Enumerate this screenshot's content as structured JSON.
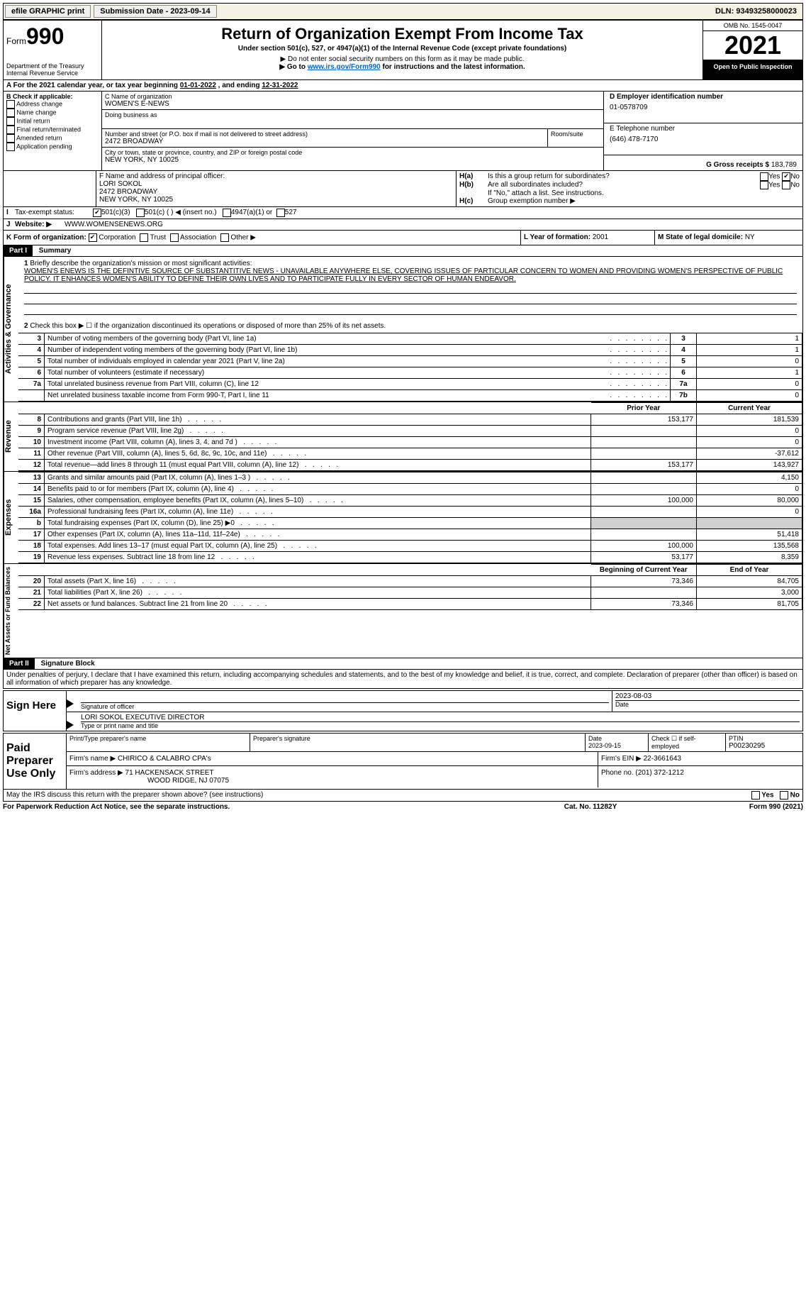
{
  "topbar": {
    "efile_label": "efile GRAPHIC print",
    "submission_label": "Submission Date - 2023-09-14",
    "dln_label": "DLN: 93493258000023"
  },
  "header": {
    "form_label": "Form",
    "form_number": "990",
    "dept": "Department of the Treasury\nInternal Revenue Service",
    "title": "Return of Organization Exempt From Income Tax",
    "subtitle": "Under section 501(c), 527, or 4947(a)(1) of the Internal Revenue Code (except private foundations)",
    "ssn_note": "▶ Do not enter social security numbers on this form as it may be made public.",
    "goto_prefix": "▶ Go to ",
    "goto_link": "www.irs.gov/Form990",
    "goto_suffix": " for instructions and the latest information.",
    "omb": "OMB No. 1545-0047",
    "year": "2021",
    "open_label": "Open to Public Inspection"
  },
  "line_a": {
    "text_prefix": "A For the 2021 calendar year, or tax year beginning ",
    "begin_date": "01-01-2022",
    "mid": " , and ending ",
    "end_date": "12-31-2022"
  },
  "box_b": {
    "label": "B Check if applicable:",
    "items": [
      "Address change",
      "Name change",
      "Initial return",
      "Final return/terminated",
      "Amended return",
      "Application pending"
    ]
  },
  "box_c": {
    "name_label": "C Name of organization",
    "name": "WOMEN'S E-NEWS",
    "dba_label": "Doing business as",
    "dba": "",
    "street_label": "Number and street (or P.O. box if mail is not delivered to street address)",
    "room_label": "Room/suite",
    "street": "2472 BROADWAY",
    "city_label": "City or town, state or province, country, and ZIP or foreign postal code",
    "city": "NEW YORK, NY  10025"
  },
  "box_d": {
    "label": "D Employer identification number",
    "value": "01-0578709"
  },
  "box_e": {
    "label": "E Telephone number",
    "value": "(646) 478-7170"
  },
  "box_g": {
    "label": "G Gross receipts $ ",
    "value": "183,789"
  },
  "box_f": {
    "label": "F Name and address of principal officer:",
    "name": "LORI SOKOL",
    "street": "2472 BROADWAY",
    "city": "NEW YORK, NY  10025"
  },
  "box_h": {
    "a_label": "H(a)",
    "a_text": "Is this a group return for subordinates?",
    "b_label": "H(b)",
    "b_text": "Are all subordinates included?",
    "b_note": "If \"No,\" attach a list. See instructions.",
    "c_label": "H(c)",
    "c_text": "Group exemption number ▶",
    "yes": "Yes",
    "no": "No"
  },
  "box_i": {
    "label": "I",
    "text": "Tax-exempt status:",
    "opt1": "501(c)(3)",
    "opt2": "501(c) (   ) ◀ (insert no.)",
    "opt3": "4947(a)(1) or",
    "opt4": "527"
  },
  "box_j": {
    "label": "J",
    "text": "Website: ▶",
    "value": "WWW.WOMENSENEWS.ORG"
  },
  "box_k": {
    "label": "K Form of organization:",
    "opts": [
      "Corporation",
      "Trust",
      "Association",
      "Other ▶"
    ]
  },
  "box_l": {
    "label": "L Year of formation: ",
    "value": "2001"
  },
  "box_m": {
    "label": "M State of legal domicile: ",
    "value": "NY"
  },
  "part1": {
    "label": "Part I",
    "title": "Summary",
    "line1_label": "1",
    "line1_text": "Briefly describe the organization's mission or most significant activities:",
    "line1_value": "WOMEN'S ENEWS IS THE DEFINTIVE SOURCE OF SUBSTANTITIVE NEWS - UNAVAILABLE ANYWHERE ELSE, COVERING ISSUES OF PARTICULAR CONCERN TO WOMEN AND PROVIDING WOMEN'S PERSPECTIVE OF PUBLIC POLICY. IT ENHANCES WOMEN'S ABILITY TO DEFINE THEIR OWN LIVES AND TO PARTICIPATE FULLY IN EVERY SECTOR OF HUMAN ENDEAVOR.",
    "governance_label": "Activities & Governance",
    "line2_text": "Check this box ▶ ☐ if the organization discontinued its operations or disposed of more than 25% of its net assets.",
    "rows_gov": [
      {
        "n": "3",
        "desc": "Number of voting members of the governing body (Part VI, line 1a)",
        "box": "3",
        "val": "1"
      },
      {
        "n": "4",
        "desc": "Number of independent voting members of the governing body (Part VI, line 1b)",
        "box": "4",
        "val": "1"
      },
      {
        "n": "5",
        "desc": "Total number of individuals employed in calendar year 2021 (Part V, line 2a)",
        "box": "5",
        "val": "0"
      },
      {
        "n": "6",
        "desc": "Total number of volunteers (estimate if necessary)",
        "box": "6",
        "val": "1"
      },
      {
        "n": "7a",
        "desc": "Total unrelated business revenue from Part VIII, column (C), line 12",
        "box": "7a",
        "val": "0"
      },
      {
        "n": "",
        "desc": "Net unrelated business taxable income from Form 990-T, Part I, line 11",
        "box": "7b",
        "val": "0"
      }
    ],
    "prior_year": "Prior Year",
    "current_year": "Current Year",
    "revenue_label": "Revenue",
    "rows_rev": [
      {
        "n": "8",
        "desc": "Contributions and grants (Part VIII, line 1h)",
        "py": "153,177",
        "cy": "181,539"
      },
      {
        "n": "9",
        "desc": "Program service revenue (Part VIII, line 2g)",
        "py": "",
        "cy": "0"
      },
      {
        "n": "10",
        "desc": "Investment income (Part VIII, column (A), lines 3, 4, and 7d )",
        "py": "",
        "cy": "0"
      },
      {
        "n": "11",
        "desc": "Other revenue (Part VIII, column (A), lines 5, 6d, 8c, 9c, 10c, and 11e)",
        "py": "",
        "cy": "-37,612"
      },
      {
        "n": "12",
        "desc": "Total revenue—add lines 8 through 11 (must equal Part VIII, column (A), line 12)",
        "py": "153,177",
        "cy": "143,927"
      }
    ],
    "expenses_label": "Expenses",
    "rows_exp": [
      {
        "n": "13",
        "desc": "Grants and similar amounts paid (Part IX, column (A), lines 1–3 )",
        "py": "",
        "cy": "4,150"
      },
      {
        "n": "14",
        "desc": "Benefits paid to or for members (Part IX, column (A), line 4)",
        "py": "",
        "cy": "0"
      },
      {
        "n": "15",
        "desc": "Salaries, other compensation, employee benefits (Part IX, column (A), lines 5–10)",
        "py": "100,000",
        "cy": "80,000"
      },
      {
        "n": "16a",
        "desc": "Professional fundraising fees (Part IX, column (A), line 11e)",
        "py": "",
        "cy": "0"
      },
      {
        "n": "b",
        "desc": "Total fundraising expenses (Part IX, column (D), line 25) ▶0",
        "py": "shaded",
        "cy": "shaded"
      },
      {
        "n": "17",
        "desc": "Other expenses (Part IX, column (A), lines 11a–11d, 11f–24e)",
        "py": "",
        "cy": "51,418"
      },
      {
        "n": "18",
        "desc": "Total expenses. Add lines 13–17 (must equal Part IX, column (A), line 25)",
        "py": "100,000",
        "cy": "135,568"
      },
      {
        "n": "19",
        "desc": "Revenue less expenses. Subtract line 18 from line 12",
        "py": "53,177",
        "cy": "8,359"
      }
    ],
    "netassets_label": "Net Assets or Fund Balances",
    "boy": "Beginning of Current Year",
    "eoy": "End of Year",
    "rows_na": [
      {
        "n": "20",
        "desc": "Total assets (Part X, line 16)",
        "py": "73,346",
        "cy": "84,705"
      },
      {
        "n": "21",
        "desc": "Total liabilities (Part X, line 26)",
        "py": "",
        "cy": "3,000"
      },
      {
        "n": "22",
        "desc": "Net assets or fund balances. Subtract line 21 from line 20",
        "py": "73,346",
        "cy": "81,705"
      }
    ]
  },
  "part2": {
    "label": "Part II",
    "title": "Signature Block",
    "declaration": "Under penalties of perjury, I declare that I have examined this return, including accompanying schedules and statements, and to the best of my knowledge and belief, it is true, correct, and complete. Declaration of preparer (other than officer) is based on all information of which preparer has any knowledge."
  },
  "sign": {
    "label": "Sign Here",
    "sig_officer": "Signature of officer",
    "date": "Date",
    "date_val": "2023-08-03",
    "name_title": "LORI SOKOL  EXECUTIVE DIRECTOR",
    "type_label": "Type or print name and title"
  },
  "paid": {
    "label": "Paid Preparer Use Only",
    "prep_name_label": "Print/Type preparer's name",
    "prep_name": "",
    "prep_sig_label": "Preparer's signature",
    "prep_date_label": "Date",
    "prep_date": "2023-09-15",
    "check_label": "Check ☐ if self-employed",
    "ptin_label": "PTIN",
    "ptin": "P00230295",
    "firm_name_label": "Firm's name     ▶",
    "firm_name": "CHIRICO & CALABRO CPA's",
    "firm_ein_label": "Firm's EIN ▶",
    "firm_ein": "22-3661643",
    "firm_addr_label": "Firm's address ▶",
    "firm_addr1": "71 HACKENSACK STREET",
    "firm_addr2": "WOOD RIDGE, NJ  07075",
    "phone_label": "Phone no. ",
    "phone": "(201) 372-1212"
  },
  "discuss": {
    "text": "May the IRS discuss this return with the preparer shown above? (see instructions)",
    "yes": "Yes",
    "no": "No"
  },
  "footer": {
    "left": "For Paperwork Reduction Act Notice, see the separate instructions.",
    "center": "Cat. No. 11282Y",
    "right": "Form 990 (2021)"
  }
}
